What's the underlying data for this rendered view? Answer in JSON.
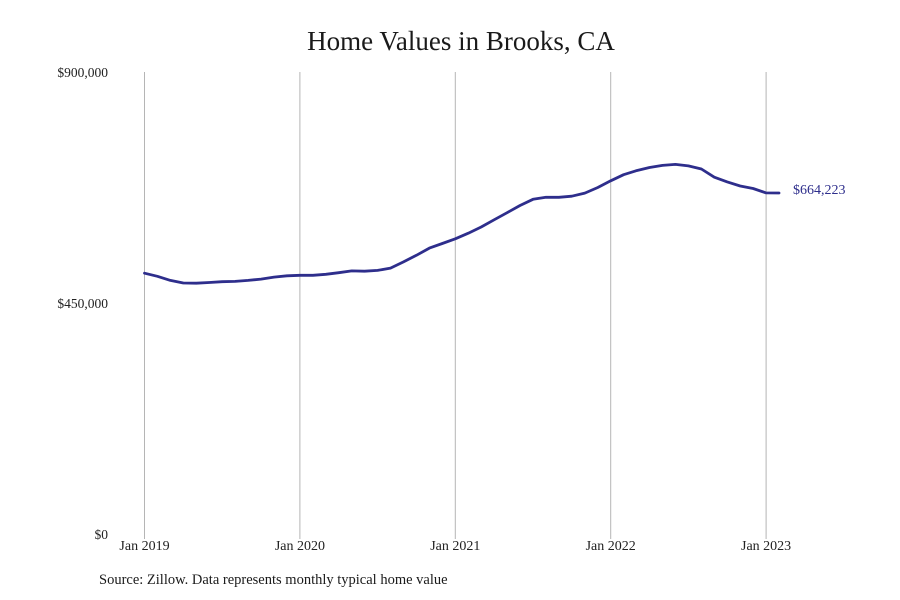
{
  "chart_data": {
    "type": "line",
    "title": "Home Values in Brooks, CA",
    "xlabel": "",
    "ylabel": "",
    "ylim": [
      0,
      900000
    ],
    "y_ticks": [
      {
        "value": 0,
        "label": "$0"
      },
      {
        "value": 450000,
        "label": "$450,000"
      },
      {
        "value": 900000,
        "label": "$900,000"
      }
    ],
    "x_ticks": [
      "Jan 2019",
      "Jan 2020",
      "Jan 2021",
      "Jan 2022",
      "Jan 2023"
    ],
    "grid": "vertical",
    "series": [
      {
        "color": "#2e2e8c",
        "start": "Jan 2019",
        "frequency": "monthly",
        "values": [
          508000,
          502000,
          494000,
          489000,
          488500,
          490000,
          491500,
          492000,
          494000,
          496500,
          500500,
          503000,
          504000,
          504000,
          506000,
          509000,
          512500,
          512000,
          513500,
          518000,
          530000,
          543000,
          557000,
          566000,
          575000,
          586000,
          598000,
          612000,
          626000,
          640000,
          652000,
          656000,
          656000,
          658000,
          664000,
          675000,
          688000,
          700000,
          708000,
          714000,
          718000,
          720000,
          717000,
          711000,
          695000,
          686000,
          678000,
          673000,
          664500,
          664223
        ],
        "end_label": "$664,223"
      }
    ],
    "source": "Source: Zillow. Data represents monthly typical home value"
  }
}
